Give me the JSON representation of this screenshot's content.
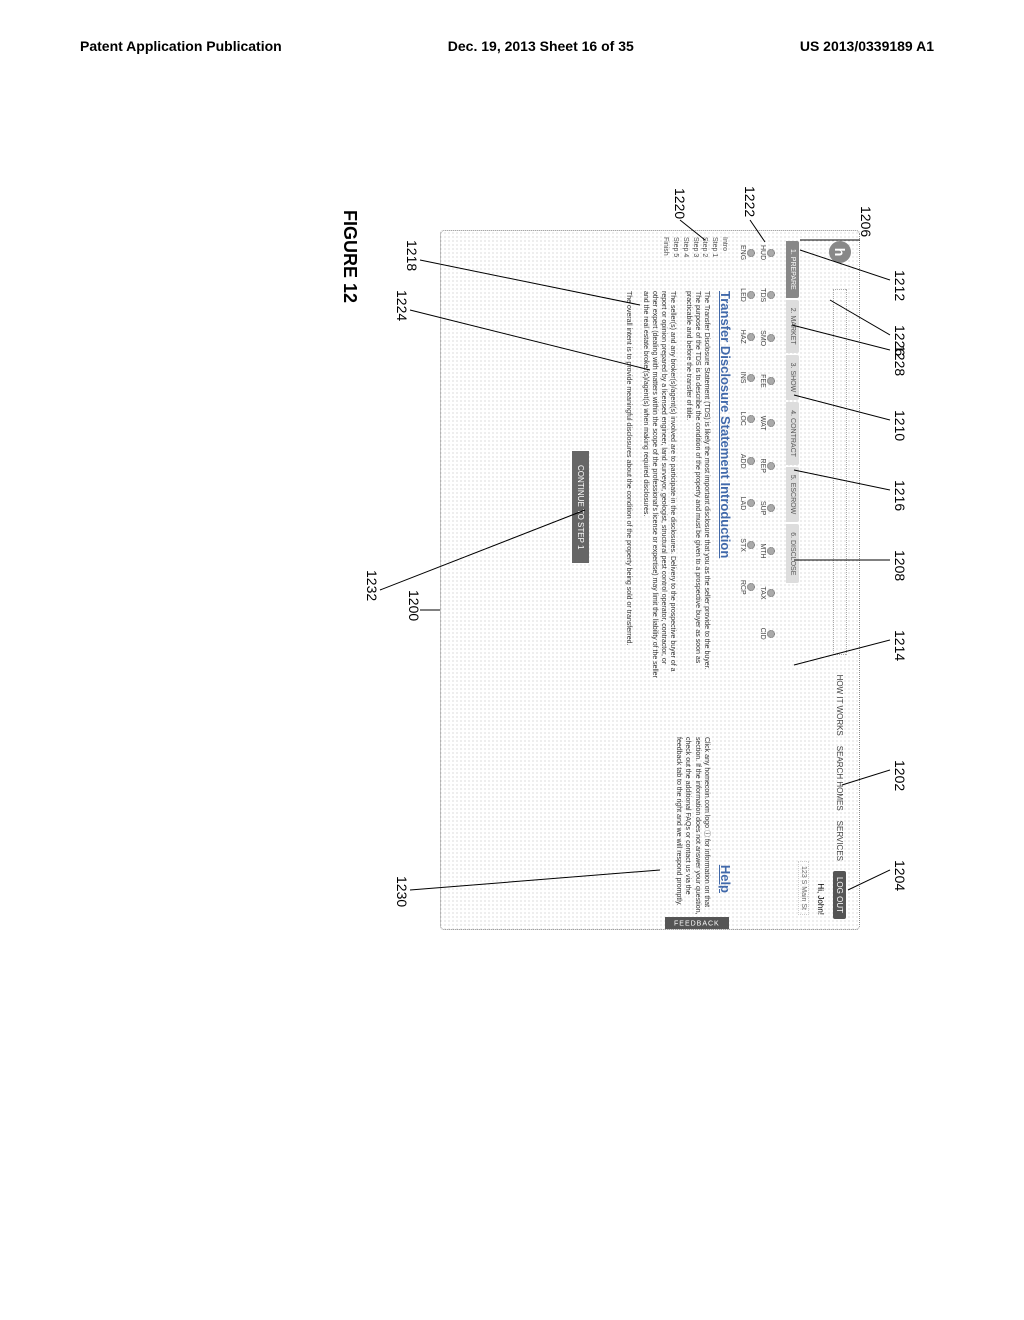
{
  "page_header": {
    "left": "Patent Application Publication",
    "center": "Dec. 19, 2013  Sheet 16 of 35",
    "right": "US 2013/0339189 A1"
  },
  "figure_label": "FIGURE 12",
  "screenshot": {
    "logo_letter": "h",
    "search_placeholder": "",
    "nav": [
      "HOW IT WORKS",
      "SEARCH HOMES",
      "SERVICES"
    ],
    "logout": "LOG OUT",
    "greeting": "Hi, John!",
    "address": "123 S Main St",
    "stage_tabs": [
      {
        "label": "1. PREPARE",
        "active": true
      },
      {
        "label": "2. MARKET",
        "active": false
      },
      {
        "label": "3. SHOW",
        "active": false
      },
      {
        "label": "4. CONTRACT",
        "active": false
      },
      {
        "label": "5. ESCROW",
        "active": false
      },
      {
        "label": "6. DISCLOSE",
        "active": false
      }
    ],
    "pills_row1": [
      "HUD",
      "TDS",
      "SMO",
      "FEE",
      "WAT",
      "REP",
      "SUP",
      "MTH",
      "TAX",
      "CID"
    ],
    "pills_row2": [
      "ENG",
      "LED",
      "HAZ",
      "INS",
      "LOC",
      "ADD",
      "LAD",
      "STX",
      "RCP"
    ],
    "steps": [
      "Intro",
      "Step 1",
      "Step 2",
      "Step 3",
      "Step 4",
      "Step 5",
      "Finish"
    ],
    "content_title": "Transfer Disclosure Statement Introduction",
    "help_title": "Help",
    "p1": "The Transfer Disclosure Statement (TDS) is likely the most important disclosure that you as the seller provide to the buyer. The purpose of the TDS is to describe the condition of the property and must be given to a prospective buyer as soon as practicable and before the transfer of title.",
    "p2": "The seller(s) and any broker(s)/agent(s) involved are to participate in the disclosures. Delivery to the prospective buyer of a report or opinion prepared by a licensed engineer, land surveyor, geologist, structural pest control operator, contractor, or other expert (dealing with matters within the scope of the professional's license or expertise) may limit the liability of the seller and the real estate broker(s)/agent(s) when making required disclosures.",
    "p3": "The overall intent is to provide meaningful disclosures about the condition of the property being sold or transferred.",
    "help_text": "Click any homecoin.com logo ⓘ for information on that section. If the information does not answer your question, check out the additional FAQs or contact us via the feedback tab to the right and we will respond promptly.",
    "feedback": "FEEDBACK",
    "continue": "CONTINUE TO STEP 1"
  },
  "callouts": {
    "c1200": "1200",
    "c1202": "1202",
    "c1204": "1204",
    "c1206": "1206",
    "c1208": "1208",
    "c1210": "1210",
    "c1212": "1212",
    "c1214": "1214",
    "c1216": "1216",
    "c1218": "1218",
    "c1220": "1220",
    "c1222": "1222",
    "c1224": "1224",
    "c1226": "1226",
    "c1228": "1228",
    "c1230": "1230",
    "c1232": "1232"
  }
}
